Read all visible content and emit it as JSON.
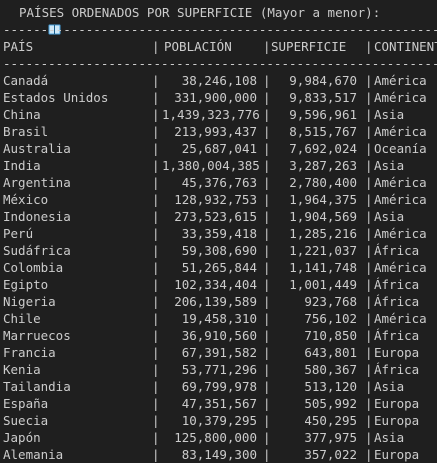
{
  "title": "PAÍSES ORDENADOS POR SUPERFICIE (Mayor a menor):",
  "separator": "----------------------------------------------------------------------",
  "headers": {
    "name": "PAÍS",
    "population": "POBLACIÓN",
    "area": "SUPERFICIE",
    "continent": "CONTINENTE"
  },
  "rows": [
    {
      "name": "Canadá",
      "population": "38,246,108",
      "area": "9,984,670",
      "continent": "América"
    },
    {
      "name": "Estados Unidos",
      "population": "331,900,000",
      "area": "9,833,517",
      "continent": "América"
    },
    {
      "name": "China",
      "population": "1,439,323,776",
      "area": "9,596,961",
      "continent": "Asia"
    },
    {
      "name": "Brasil",
      "population": "213,993,437",
      "area": "8,515,767",
      "continent": "América"
    },
    {
      "name": "Australia",
      "population": "25,687,041",
      "area": "7,692,024",
      "continent": "Oceanía"
    },
    {
      "name": "India",
      "population": "1,380,004,385",
      "area": "3,287,263",
      "continent": "Asia"
    },
    {
      "name": "Argentina",
      "population": "45,376,763",
      "area": "2,780,400",
      "continent": "América"
    },
    {
      "name": "México",
      "population": "128,932,753",
      "area": "1,964,375",
      "continent": "América"
    },
    {
      "name": "Indonesia",
      "population": "273,523,615",
      "area": "1,904,569",
      "continent": "Asia"
    },
    {
      "name": "Perú",
      "population": "33,359,418",
      "area": "1,285,216",
      "continent": "América"
    },
    {
      "name": "Sudáfrica",
      "population": "59,308,690",
      "area": "1,221,037",
      "continent": "África"
    },
    {
      "name": "Colombia",
      "population": "51,265,844",
      "area": "1,141,748",
      "continent": "América"
    },
    {
      "name": "Egipto",
      "population": "102,334,404",
      "area": "1,001,449",
      "continent": "África"
    },
    {
      "name": "Nigeria",
      "population": "206,139,589",
      "area": "923,768",
      "continent": "África"
    },
    {
      "name": "Chile",
      "population": "19,458,310",
      "area": "756,102",
      "continent": "América"
    },
    {
      "name": "Marruecos",
      "population": "36,910,560",
      "area": "710,850",
      "continent": "África"
    },
    {
      "name": "Francia",
      "population": "67,391,582",
      "area": "643,801",
      "continent": "Europa"
    },
    {
      "name": "Kenia",
      "population": "53,771,296",
      "area": "580,367",
      "continent": "África"
    },
    {
      "name": "Tailandia",
      "population": "69,799,978",
      "area": "513,120",
      "continent": "Asia"
    },
    {
      "name": "España",
      "population": "47,351,567",
      "area": "505,992",
      "continent": "Europa"
    },
    {
      "name": "Suecia",
      "population": "10,379,295",
      "area": "450,295",
      "continent": "Europa"
    },
    {
      "name": "Japón",
      "population": "125,800,000",
      "area": "377,975",
      "continent": "Asia"
    },
    {
      "name": "Alemania",
      "population": "83,149,300",
      "area": "357,022",
      "continent": "Europa"
    }
  ],
  "column_separator": "|",
  "colors": {
    "background": "#1f1f1f",
    "text": "#cccccc",
    "icon": "#4aa3df"
  },
  "icon": "open-book-icon"
}
